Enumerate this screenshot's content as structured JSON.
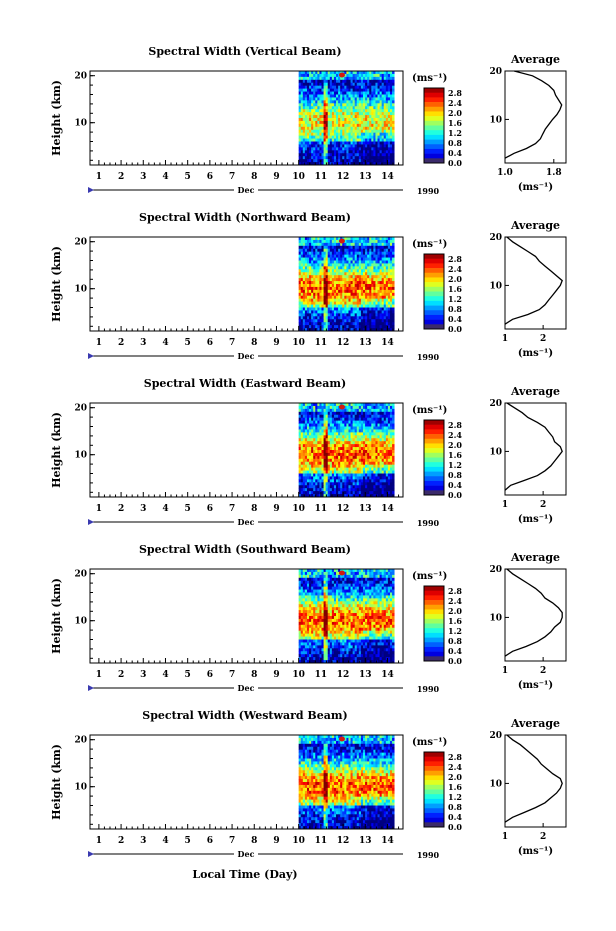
{
  "page": {
    "xlabel": "Local Time (Day)",
    "time_axis": {
      "day_ticks": [
        "1",
        "2",
        "3",
        "4",
        "5",
        "6",
        "7",
        "8",
        "9",
        "10",
        "11",
        "12",
        "13",
        "14"
      ],
      "month": "Dec",
      "year": "1990"
    }
  },
  "chart_data": [
    {
      "type": "heatmap",
      "title": "Spectral Width (Vertical Beam)",
      "ylabel": "Height (km)",
      "y_ticks": [
        "20",
        "10"
      ],
      "x_data_range": [
        10,
        14.3
      ],
      "colorbar": {
        "unit_label": "(ms⁻¹)",
        "ticks": [
          "2.8",
          "2.4",
          "2.0",
          "1.6",
          "1.2",
          "0.8",
          "0.4",
          "0.0"
        ],
        "range": [
          0.0,
          3.0
        ]
      },
      "average": {
        "title": "Average",
        "xlabel": "(ms⁻¹)",
        "x_ticks": [
          "1.0",
          "1.8"
        ],
        "xlim": [
          1.0,
          2.0
        ],
        "y_ticks": [
          "20",
          "10"
        ],
        "ylim": [
          1,
          20
        ],
        "profile": [
          [
            1.0,
            2
          ],
          [
            1.15,
            3
          ],
          [
            1.35,
            4
          ],
          [
            1.5,
            5
          ],
          [
            1.58,
            6
          ],
          [
            1.62,
            7
          ],
          [
            1.66,
            8
          ],
          [
            1.72,
            9
          ],
          [
            1.78,
            10
          ],
          [
            1.85,
            11
          ],
          [
            1.9,
            12
          ],
          [
            1.93,
            13
          ],
          [
            1.88,
            14
          ],
          [
            1.83,
            15
          ],
          [
            1.8,
            16
          ],
          [
            1.72,
            17
          ],
          [
            1.6,
            18
          ],
          [
            1.45,
            19
          ],
          [
            1.15,
            20
          ]
        ]
      }
    },
    {
      "type": "heatmap",
      "title": "Spectral Width (Northward Beam)",
      "ylabel": "Height (km)",
      "y_ticks": [
        "20",
        "10"
      ],
      "x_data_range": [
        10,
        14.3
      ],
      "colorbar": {
        "unit_label": "(ms⁻¹)",
        "ticks": [
          "2.8",
          "2.4",
          "2.0",
          "1.6",
          "1.2",
          "0.8",
          "0.4",
          "0.0"
        ],
        "range": [
          0.0,
          3.0
        ]
      },
      "average": {
        "title": "Average",
        "xlabel": "(ms⁻¹)",
        "x_ticks": [
          "1",
          "2"
        ],
        "xlim": [
          1.0,
          2.6
        ],
        "y_ticks": [
          "20",
          "10"
        ],
        "ylim": [
          1,
          20
        ],
        "profile": [
          [
            1.0,
            2
          ],
          [
            1.2,
            3
          ],
          [
            1.6,
            4
          ],
          [
            1.9,
            5
          ],
          [
            2.05,
            6
          ],
          [
            2.15,
            7
          ],
          [
            2.25,
            8
          ],
          [
            2.35,
            9
          ],
          [
            2.45,
            10
          ],
          [
            2.5,
            11
          ],
          [
            2.35,
            12
          ],
          [
            2.2,
            13
          ],
          [
            2.05,
            14
          ],
          [
            1.9,
            15
          ],
          [
            1.8,
            16
          ],
          [
            1.6,
            17
          ],
          [
            1.4,
            18
          ],
          [
            1.2,
            19
          ],
          [
            1.05,
            20
          ]
        ]
      }
    },
    {
      "type": "heatmap",
      "title": "Spectral Width (Eastward Beam)",
      "ylabel": "Height (km)",
      "y_ticks": [
        "20",
        "10"
      ],
      "x_data_range": [
        10,
        14.3
      ],
      "colorbar": {
        "unit_label": "(ms⁻¹)",
        "ticks": [
          "2.8",
          "2.4",
          "2.0",
          "1.6",
          "1.2",
          "0.8",
          "0.4",
          "0.0"
        ],
        "range": [
          0.0,
          3.0
        ]
      },
      "average": {
        "title": "Average",
        "xlabel": "(ms⁻¹)",
        "x_ticks": [
          "1",
          "2"
        ],
        "xlim": [
          1.0,
          2.6
        ],
        "y_ticks": [
          "20",
          "10"
        ],
        "ylim": [
          1,
          20
        ],
        "profile": [
          [
            1.0,
            2
          ],
          [
            1.15,
            3
          ],
          [
            1.5,
            4
          ],
          [
            1.85,
            5
          ],
          [
            2.05,
            6
          ],
          [
            2.2,
            7
          ],
          [
            2.3,
            8
          ],
          [
            2.4,
            9
          ],
          [
            2.5,
            10
          ],
          [
            2.45,
            11
          ],
          [
            2.3,
            12
          ],
          [
            2.25,
            13
          ],
          [
            2.15,
            14
          ],
          [
            2.05,
            15
          ],
          [
            1.85,
            16
          ],
          [
            1.6,
            17
          ],
          [
            1.45,
            18
          ],
          [
            1.25,
            19
          ],
          [
            1.05,
            20
          ]
        ]
      }
    },
    {
      "type": "heatmap",
      "title": "Spectral Width (Southward Beam)",
      "ylabel": "Height (km)",
      "y_ticks": [
        "20",
        "10"
      ],
      "x_data_range": [
        10,
        14.3
      ],
      "colorbar": {
        "unit_label": "(ms⁻¹)",
        "ticks": [
          "2.8",
          "2.4",
          "2.0",
          "1.6",
          "1.2",
          "0.8",
          "0.4",
          "0.0"
        ],
        "range": [
          0.0,
          3.0
        ]
      },
      "average": {
        "title": "Average",
        "xlabel": "(ms⁻¹)",
        "x_ticks": [
          "1",
          "2"
        ],
        "xlim": [
          1.0,
          2.6
        ],
        "y_ticks": [
          "20",
          "10"
        ],
        "ylim": [
          1,
          20
        ],
        "profile": [
          [
            1.0,
            2
          ],
          [
            1.2,
            3
          ],
          [
            1.55,
            4
          ],
          [
            1.85,
            5
          ],
          [
            2.05,
            6
          ],
          [
            2.2,
            7
          ],
          [
            2.3,
            8
          ],
          [
            2.45,
            9
          ],
          [
            2.5,
            10
          ],
          [
            2.5,
            11
          ],
          [
            2.4,
            12
          ],
          [
            2.25,
            13
          ],
          [
            2.05,
            14
          ],
          [
            1.95,
            15
          ],
          [
            1.8,
            16
          ],
          [
            1.6,
            17
          ],
          [
            1.4,
            18
          ],
          [
            1.2,
            19
          ],
          [
            1.05,
            20
          ]
        ]
      }
    },
    {
      "type": "heatmap",
      "title": "Spectral Width (Westward Beam)",
      "ylabel": "Height (km)",
      "y_ticks": [
        "20",
        "10"
      ],
      "x_data_range": [
        10,
        14.3
      ],
      "colorbar": {
        "unit_label": "(ms⁻¹)",
        "ticks": [
          "2.8",
          "2.4",
          "2.0",
          "1.6",
          "1.2",
          "0.8",
          "0.4",
          "0.0"
        ],
        "range": [
          0.0,
          3.0
        ]
      },
      "average": {
        "title": "Average",
        "xlabel": "(ms⁻¹)",
        "x_ticks": [
          "1",
          "2"
        ],
        "xlim": [
          1.0,
          2.6
        ],
        "y_ticks": [
          "20",
          "10"
        ],
        "ylim": [
          1,
          20
        ],
        "profile": [
          [
            1.0,
            2
          ],
          [
            1.2,
            3
          ],
          [
            1.5,
            4
          ],
          [
            1.8,
            5
          ],
          [
            2.05,
            6
          ],
          [
            2.2,
            7
          ],
          [
            2.35,
            8
          ],
          [
            2.45,
            9
          ],
          [
            2.5,
            10
          ],
          [
            2.45,
            11
          ],
          [
            2.25,
            12
          ],
          [
            2.1,
            13
          ],
          [
            1.95,
            14
          ],
          [
            1.85,
            15
          ],
          [
            1.7,
            16
          ],
          [
            1.55,
            17
          ],
          [
            1.4,
            18
          ],
          [
            1.2,
            19
          ],
          [
            1.05,
            20
          ]
        ]
      }
    }
  ]
}
